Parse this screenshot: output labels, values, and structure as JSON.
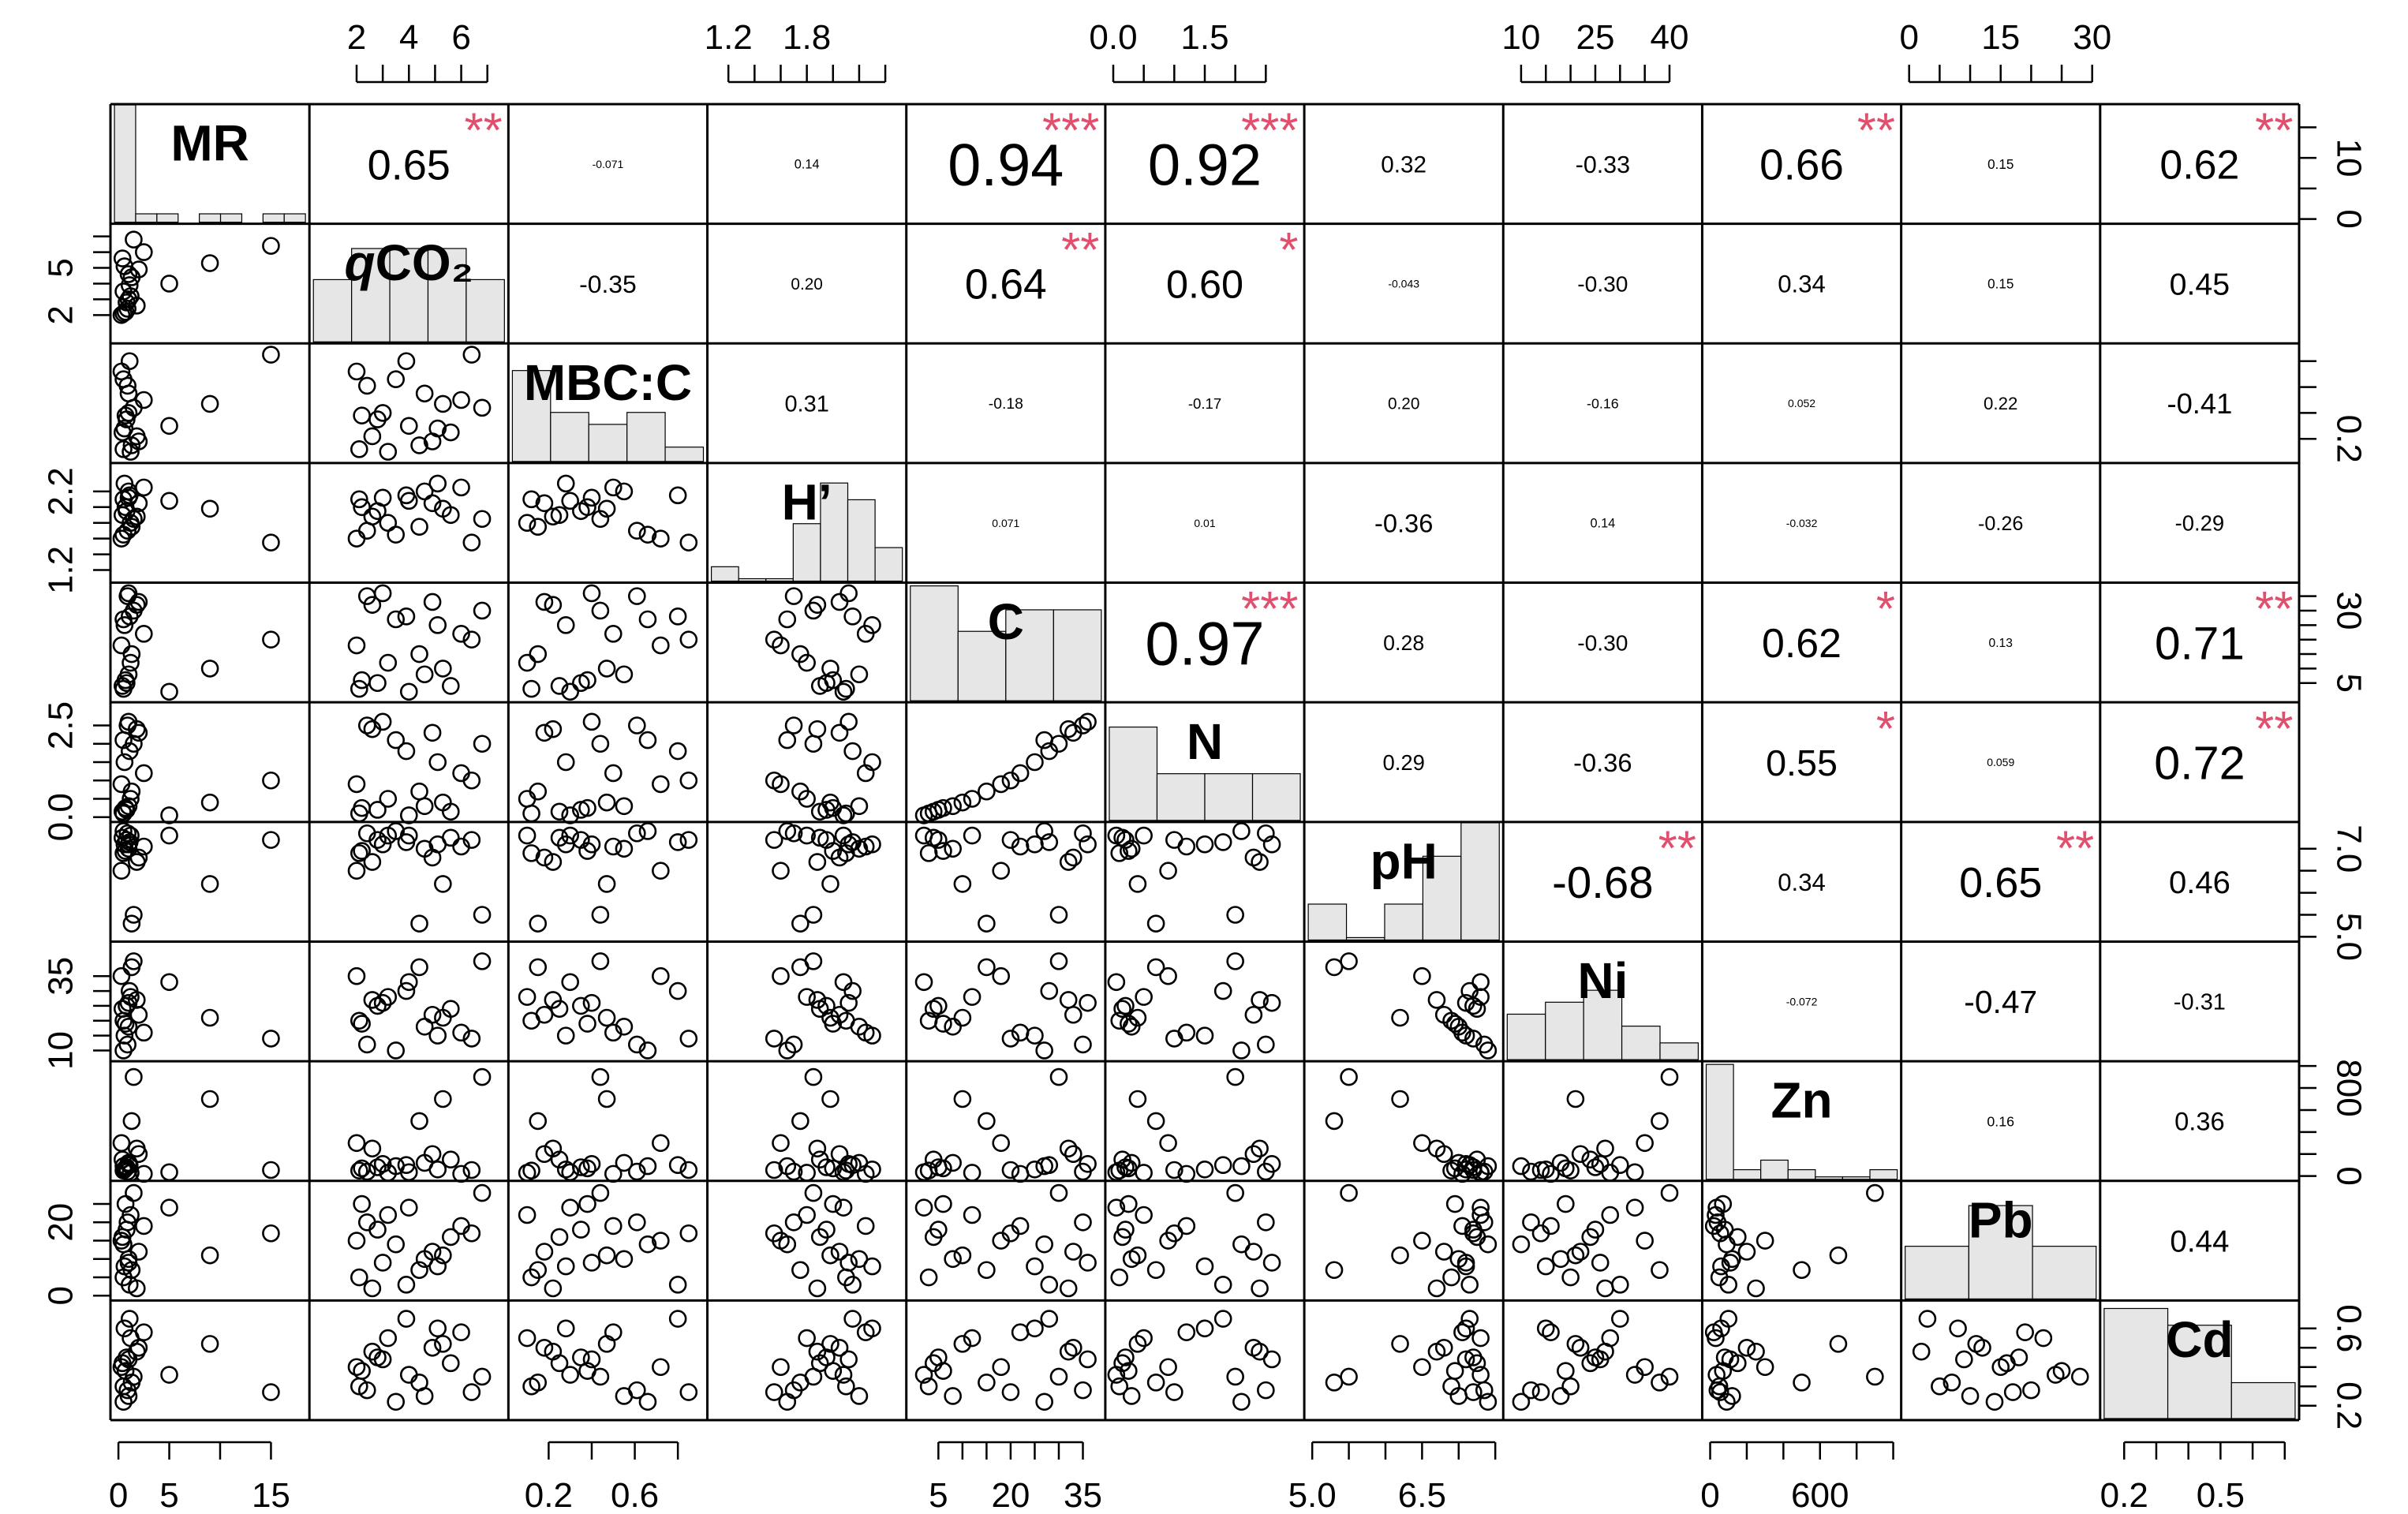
{
  "chart_data": {
    "type": "scatter-matrix",
    "variables": [
      "MR",
      "qCO₂",
      "MBC:C",
      "H’",
      "C",
      "N",
      "pH",
      "Ni",
      "Zn",
      "Pb",
      "Cd"
    ],
    "diagonal_labels": [
      "MR",
      "CO₂",
      "MBC:C",
      "H’",
      "C",
      "N",
      "pH",
      "Ni",
      "Zn",
      "Pb",
      "Cd"
    ],
    "diagonal_label_prefix": {
      "index": 1,
      "text": "q"
    },
    "axes": [
      {
        "name": "MR",
        "range": [
          0,
          18
        ],
        "ticks": [
          0,
          5,
          10,
          15
        ],
        "labels": [
          "0",
          "5",
          "",
          "15"
        ],
        "side": "bottom"
      },
      {
        "name": "qCO₂",
        "range": [
          0.5,
          7.5
        ],
        "ticks": [
          2,
          3,
          4,
          5,
          6,
          7
        ],
        "labels": [
          "2",
          "",
          "4",
          "",
          "6",
          ""
        ],
        "side": "top"
      },
      {
        "name": "MBC:C",
        "range": [
          0.05,
          0.9
        ],
        "ticks": [
          0.2,
          0.4,
          0.6,
          0.8
        ],
        "labels": [
          "0.2",
          "",
          "0.6",
          ""
        ],
        "side": "bottom"
      },
      {
        "name": "H’",
        "range": [
          1.1,
          2.5
        ],
        "ticks": [
          1.2,
          1.4,
          1.6,
          1.8,
          2.0,
          2.2,
          2.4
        ],
        "labels": [
          "1.2",
          "",
          "",
          "1.8",
          "",
          "",
          ""
        ],
        "side": "top"
      },
      {
        "name": "C",
        "range": [
          0,
          38
        ],
        "ticks": [
          5,
          10,
          15,
          20,
          25,
          30,
          35
        ],
        "labels": [
          "5",
          "",
          "",
          "20",
          "",
          "",
          "35"
        ],
        "side": "bottom"
      },
      {
        "name": "N",
        "range": [
          0,
          3.0
        ],
        "ticks": [
          0,
          0.5,
          1.0,
          1.5,
          2.0,
          2.5
        ],
        "labels": [
          "0.0",
          "",
          "",
          "1.5",
          "",
          ""
        ],
        "side": "top"
      },
      {
        "name": "pH",
        "range": [
          5.0,
          7.5
        ],
        "ticks": [
          5.0,
          5.5,
          6.0,
          6.5,
          7.0,
          7.5
        ],
        "labels": [
          "5.0",
          "",
          "",
          "6.5",
          "",
          ""
        ],
        "side": "bottom"
      },
      {
        "name": "Ni",
        "range": [
          8,
          45
        ],
        "ticks": [
          10,
          15,
          20,
          25,
          30,
          35,
          40
        ],
        "labels": [
          "10",
          "",
          "",
          "25",
          "",
          "",
          "40"
        ],
        "side": "top"
      },
      {
        "name": "Zn",
        "range": [
          0,
          1000
        ],
        "ticks": [
          0,
          200,
          400,
          600,
          800,
          1000
        ],
        "labels": [
          "0",
          "",
          "",
          "600",
          "",
          ""
        ],
        "side": "bottom"
      },
      {
        "name": "Pb",
        "range": [
          0,
          30
        ],
        "ticks": [
          0,
          5,
          10,
          15,
          20,
          25,
          30
        ],
        "labels": [
          "0",
          "",
          "",
          "15",
          "",
          "",
          "30"
        ],
        "side": "top"
      },
      {
        "name": "Cd",
        "range": [
          0.15,
          0.72
        ],
        "ticks": [
          0.2,
          0.3,
          0.4,
          0.5,
          0.6,
          0.7
        ],
        "labels": [
          "0.2",
          "",
          "",
          "0.5",
          "",
          ""
        ],
        "side": "bottom"
      }
    ],
    "left_axes": [
      {
        "name": "qCO₂",
        "ticks": [
          2,
          3,
          4,
          5,
          6,
          7
        ],
        "labels": [
          "2",
          "",
          "",
          "5",
          "",
          ""
        ]
      },
      {
        "name": "H’",
        "ticks": [
          1.2,
          1.4,
          1.6,
          1.8,
          2.0,
          2.2
        ],
        "labels": [
          "1.2",
          "",
          "",
          "",
          "",
          "2.2"
        ]
      },
      {
        "name": "N",
        "ticks": [
          0,
          0.5,
          1.0,
          1.5,
          2.0,
          2.5
        ],
        "labels": [
          "0.0",
          "",
          "",
          "",
          "",
          "2.5"
        ]
      },
      {
        "name": "Ni",
        "ticks": [
          10,
          15,
          20,
          25,
          30,
          35
        ],
        "labels": [
          "10",
          "",
          "",
          "",
          "",
          "35"
        ]
      },
      {
        "name": "Pb",
        "ticks": [
          0,
          5,
          10,
          15,
          20,
          25
        ],
        "labels": [
          "0",
          "",
          "",
          "",
          "20",
          ""
        ]
      }
    ],
    "right_axes": [
      {
        "name": "MR",
        "ticks": [
          0,
          5,
          10,
          15
        ],
        "labels": [
          "0",
          "",
          "10",
          ""
        ]
      },
      {
        "name": "MBC:C",
        "ticks": [
          0.2,
          0.4,
          0.6,
          0.8
        ],
        "labels": [
          "0.2",
          "",
          "",
          ""
        ]
      },
      {
        "name": "C",
        "ticks": [
          5,
          10,
          15,
          20,
          25,
          30,
          35
        ],
        "labels": [
          "5",
          "",
          "",
          "",
          "",
          "30",
          ""
        ]
      },
      {
        "name": "pH",
        "ticks": [
          5.0,
          5.5,
          6.0,
          6.5,
          7.0
        ],
        "labels": [
          "5.0",
          "",
          "",
          "",
          "7.0"
        ]
      },
      {
        "name": "Zn",
        "ticks": [
          0,
          200,
          400,
          600,
          800,
          1000
        ],
        "labels": [
          "0",
          "",
          "",
          "",
          "800",
          ""
        ]
      },
      {
        "name": "Cd",
        "ticks": [
          0.2,
          0.3,
          0.4,
          0.5,
          0.6
        ],
        "labels": [
          "0.2",
          "",
          "",
          "",
          "0.6"
        ]
      }
    ],
    "observations": {
      "MR": [
        0.5,
        0.8,
        1.0,
        1.2,
        0.3,
        0.6,
        1.5,
        2.0,
        0.9,
        1.1,
        0.4,
        0.7,
        1.3,
        2.5,
        0.5,
        1.8,
        5.0,
        9.0,
        15.0,
        1.0
      ],
      "qCO₂": [
        2.1,
        2.8,
        4.6,
        3.2,
        2.0,
        5.1,
        6.8,
        4.9,
        2.4,
        3.9,
        5.6,
        2.2,
        4.4,
        6.0,
        3.5,
        2.6,
        4.0,
        5.3,
        6.4,
        3.0
      ],
      "MBC:C": [
        0.12,
        0.35,
        0.55,
        0.1,
        0.72,
        0.28,
        0.44,
        0.18,
        0.61,
        0.8,
        0.25,
        0.38,
        0.15,
        0.5,
        0.66,
        0.22,
        0.3,
        0.47,
        0.85,
        0.4
      ],
      "H’": [
        2.1,
        1.95,
        2.2,
        1.8,
        1.6,
        2.3,
        1.85,
        2.05,
        1.7,
        2.15,
        1.9,
        2.0,
        1.75,
        2.25,
        1.65,
        1.88,
        2.08,
        1.98,
        1.55,
        2.12
      ],
      "C": [
        3.0,
        5.0,
        8.0,
        12.0,
        18.0,
        25.0,
        30.0,
        33.0,
        35.0,
        28.0,
        4.0,
        6.0,
        15.0,
        22.0,
        27.0,
        32.0,
        2.0,
        10.0,
        20.0,
        36.0
      ],
      "N": [
        0.1,
        0.2,
        0.3,
        0.5,
        0.9,
        1.5,
        2.0,
        2.3,
        2.5,
        1.8,
        0.15,
        0.25,
        0.7,
        1.2,
        2.1,
        2.4,
        0.05,
        0.4,
        1.0,
        2.6
      ],
      "pH": [
        6.9,
        7.2,
        7.0,
        7.3,
        6.5,
        7.1,
        5.5,
        6.8,
        7.35,
        7.15,
        7.25,
        6.95,
        5.3,
        7.05,
        7.4,
        6.7,
        7.3,
        6.2,
        7.2,
        7.1
      ],
      "Ni": [
        20,
        25,
        18,
        28,
        35,
        15,
        40,
        22,
        12,
        30,
        24,
        19,
        38,
        16,
        10,
        27,
        33,
        21,
        14,
        26
      ],
      "Zn": [
        50,
        80,
        120,
        30,
        300,
        60,
        900,
        200,
        40,
        100,
        150,
        70,
        500,
        20,
        90,
        250,
        35,
        700,
        55,
        110
      ],
      "Pb": [
        5,
        18,
        10,
        22,
        15,
        8,
        28,
        12,
        20,
        3,
        16,
        25,
        7,
        19,
        14,
        2,
        24,
        11,
        17,
        9
      ],
      "Cd": [
        0.3,
        0.45,
        0.25,
        0.55,
        0.4,
        0.6,
        0.35,
        0.5,
        0.28,
        0.65,
        0.42,
        0.38,
        0.32,
        0.58,
        0.22,
        0.48,
        0.36,
        0.52,
        0.27,
        0.44
      ]
    },
    "histograms": [
      [
        0.98,
        0.07,
        0.07,
        0.0,
        0.07,
        0.07,
        0.0,
        0.07,
        0.07
      ],
      [
        0.52,
        0.78,
        0.78,
        0.78,
        0.52
      ],
      [
        0.76,
        0.41,
        0.31,
        0.41,
        0.12
      ],
      [
        0.12,
        0.02,
        0.02,
        0.48,
        0.82,
        0.68,
        0.28
      ],
      [
        0.96,
        0.58,
        0.76,
        0.76
      ],
      [
        0.78,
        0.39,
        0.39,
        0.39
      ],
      [
        0.3,
        0.02,
        0.3,
        0.7,
        0.98
      ],
      [
        0.38,
        0.48,
        0.58,
        0.28,
        0.14
      ],
      [
        0.96,
        0.08,
        0.16,
        0.08,
        0.02,
        0.02,
        0.08
      ],
      [
        0.44,
        0.78,
        0.44
      ],
      [
        0.92,
        0.78,
        0.3
      ]
    ],
    "correlations": [
      {
        "row": 0,
        "col": 1,
        "r": "0.65",
        "sig": "**"
      },
      {
        "row": 0,
        "col": 2,
        "r": "-0.071",
        "sig": ""
      },
      {
        "row": 0,
        "col": 3,
        "r": "0.14",
        "sig": ""
      },
      {
        "row": 0,
        "col": 4,
        "r": "0.94",
        "sig": "***"
      },
      {
        "row": 0,
        "col": 5,
        "r": "0.92",
        "sig": "***"
      },
      {
        "row": 0,
        "col": 6,
        "r": "0.32",
        "sig": ""
      },
      {
        "row": 0,
        "col": 7,
        "r": "-0.33",
        "sig": ""
      },
      {
        "row": 0,
        "col": 8,
        "r": "0.66",
        "sig": "**"
      },
      {
        "row": 0,
        "col": 9,
        "r": "0.15",
        "sig": ""
      },
      {
        "row": 0,
        "col": 10,
        "r": "0.62",
        "sig": "**"
      },
      {
        "row": 1,
        "col": 2,
        "r": "-0.35",
        "sig": ""
      },
      {
        "row": 1,
        "col": 3,
        "r": "0.20",
        "sig": ""
      },
      {
        "row": 1,
        "col": 4,
        "r": "0.64",
        "sig": "**"
      },
      {
        "row": 1,
        "col": 5,
        "r": "0.60",
        "sig": "*"
      },
      {
        "row": 1,
        "col": 6,
        "r": "-0.043",
        "sig": ""
      },
      {
        "row": 1,
        "col": 7,
        "r": "-0.30",
        "sig": ""
      },
      {
        "row": 1,
        "col": 8,
        "r": "0.34",
        "sig": ""
      },
      {
        "row": 1,
        "col": 9,
        "r": "0.15",
        "sig": ""
      },
      {
        "row": 1,
        "col": 10,
        "r": "0.45",
        "sig": ""
      },
      {
        "row": 2,
        "col": 3,
        "r": "0.31",
        "sig": ""
      },
      {
        "row": 2,
        "col": 4,
        "r": "-0.18",
        "sig": ""
      },
      {
        "row": 2,
        "col": 5,
        "r": "-0.17",
        "sig": ""
      },
      {
        "row": 2,
        "col": 6,
        "r": "0.20",
        "sig": ""
      },
      {
        "row": 2,
        "col": 7,
        "r": "-0.16",
        "sig": ""
      },
      {
        "row": 2,
        "col": 8,
        "r": "0.052",
        "sig": ""
      },
      {
        "row": 2,
        "col": 9,
        "r": "0.22",
        "sig": ""
      },
      {
        "row": 2,
        "col": 10,
        "r": "-0.41",
        "sig": ""
      },
      {
        "row": 3,
        "col": 4,
        "r": "0.071",
        "sig": ""
      },
      {
        "row": 3,
        "col": 5,
        "r": "0.01",
        "sig": ""
      },
      {
        "row": 3,
        "col": 6,
        "r": "-0.36",
        "sig": ""
      },
      {
        "row": 3,
        "col": 7,
        "r": "0.14",
        "sig": ""
      },
      {
        "row": 3,
        "col": 8,
        "r": "-0.032",
        "sig": ""
      },
      {
        "row": 3,
        "col": 9,
        "r": "-0.26",
        "sig": ""
      },
      {
        "row": 3,
        "col": 10,
        "r": "-0.29",
        "sig": ""
      },
      {
        "row": 4,
        "col": 5,
        "r": "0.97",
        "sig": "***"
      },
      {
        "row": 4,
        "col": 6,
        "r": "0.28",
        "sig": ""
      },
      {
        "row": 4,
        "col": 7,
        "r": "-0.30",
        "sig": ""
      },
      {
        "row": 4,
        "col": 8,
        "r": "0.62",
        "sig": "*"
      },
      {
        "row": 4,
        "col": 9,
        "r": "0.13",
        "sig": ""
      },
      {
        "row": 4,
        "col": 10,
        "r": "0.71",
        "sig": "**"
      },
      {
        "row": 5,
        "col": 6,
        "r": "0.29",
        "sig": ""
      },
      {
        "row": 5,
        "col": 7,
        "r": "-0.36",
        "sig": ""
      },
      {
        "row": 5,
        "col": 8,
        "r": "0.55",
        "sig": "*"
      },
      {
        "row": 5,
        "col": 9,
        "r": "0.059",
        "sig": ""
      },
      {
        "row": 5,
        "col": 10,
        "r": "0.72",
        "sig": "**"
      },
      {
        "row": 6,
        "col": 7,
        "r": "-0.68",
        "sig": "**"
      },
      {
        "row": 6,
        "col": 8,
        "r": "0.34",
        "sig": ""
      },
      {
        "row": 6,
        "col": 9,
        "r": "0.65",
        "sig": "**"
      },
      {
        "row": 6,
        "col": 10,
        "r": "0.46",
        "sig": ""
      },
      {
        "row": 7,
        "col": 8,
        "r": "-0.072",
        "sig": ""
      },
      {
        "row": 7,
        "col": 9,
        "r": "-0.47",
        "sig": ""
      },
      {
        "row": 7,
        "col": 10,
        "r": "-0.31",
        "sig": ""
      },
      {
        "row": 8,
        "col": 9,
        "r": "0.16",
        "sig": ""
      },
      {
        "row": 8,
        "col": 10,
        "r": "0.36",
        "sig": ""
      },
      {
        "row": 9,
        "col": 10,
        "r": "0.44",
        "sig": ""
      }
    ],
    "colors": {
      "significance": "#e0506e",
      "histogram_fill": "#e6e6e6",
      "ink": "#000000"
    }
  }
}
